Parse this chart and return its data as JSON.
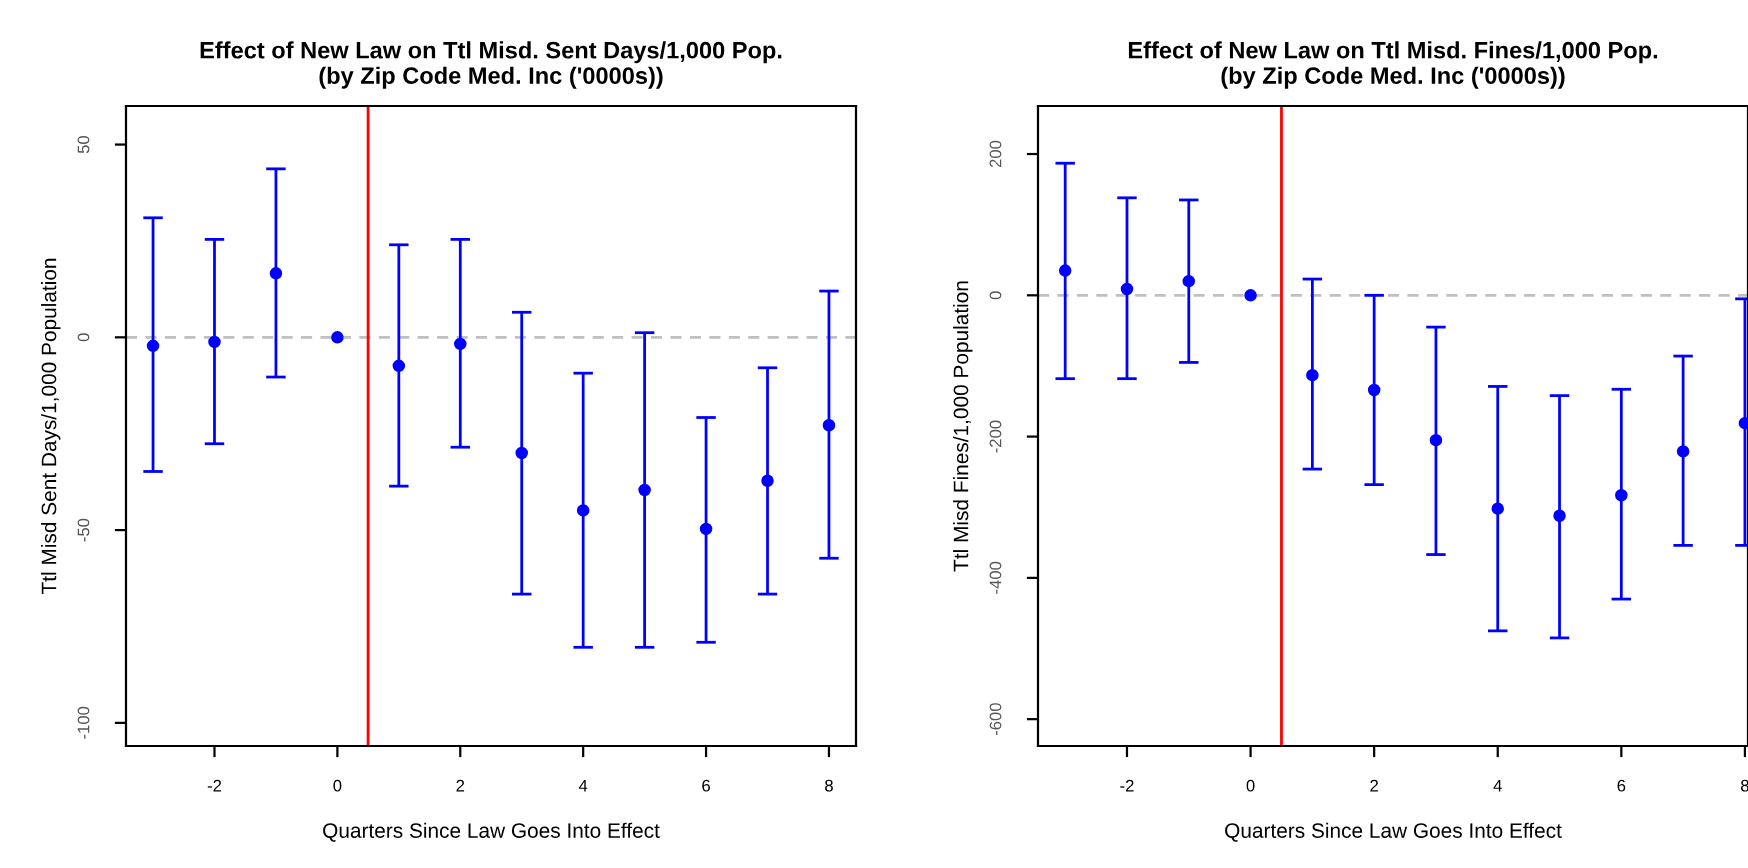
{
  "chart_data": [
    {
      "type": "scatter",
      "title": "Effect of New Law on Ttl Misd. Sent Days/1,000 Pop.\n(by Zip Code Med. Inc ('0000s))",
      "xlabel": "Quarters Since Law Goes Into Effect",
      "ylabel": "Ttl Misd Sent Days/1,000 Population",
      "x": [
        -3,
        -2,
        -1,
        0,
        1,
        2,
        3,
        4,
        5,
        6,
        7,
        8
      ],
      "series": [
        {
          "color": "#0000ff",
          "values": [
            -2.2,
            -1.2,
            16.6,
            0,
            -7.4,
            -1.7,
            -30,
            -44.9,
            -39.6,
            -49.7,
            -37.2,
            -22.8
          ],
          "errors": [
            [
              -34.8,
              31
            ],
            [
              -27.6,
              25.4
            ],
            [
              -10.3,
              43.7
            ],
            null,
            [
              -38.6,
              24
            ],
            [
              -28.5,
              25.4
            ],
            [
              -66.6,
              6.5
            ],
            [
              -80.4,
              -9.3
            ],
            [
              -80.4,
              1.2
            ],
            [
              -79.1,
              -20.8
            ],
            [
              -66.6,
              -7.9
            ],
            [
              -57.3,
              12
            ]
          ]
        }
      ],
      "xlim": [
        -3.44,
        8.44
      ],
      "ylim": [
        -106,
        60
      ],
      "xticks": [
        -2,
        0,
        2,
        4,
        6,
        8
      ],
      "yticks": [
        -100,
        -50,
        0,
        50
      ],
      "ref_lines": [
        {
          "axis": "y",
          "value": 0,
          "color": "#c0c0c0",
          "line_style": "dashed"
        },
        {
          "axis": "x",
          "value": 0.5,
          "color": "#ff0000",
          "line_style": "solid"
        }
      ],
      "marker": "circle",
      "grid": false,
      "legend": false
    },
    {
      "type": "scatter",
      "title": "Effect of New Law on Ttl Misd. Fines/1,000 Pop.\n(by Zip Code Med. Inc ('0000s))",
      "xlabel": "Quarters Since Law Goes Into Effect",
      "ylabel": "Ttl Misd Fines/1,000 Population",
      "x": [
        -3,
        -2,
        -1,
        0,
        1,
        2,
        3,
        4,
        5,
        6,
        7,
        8
      ],
      "series": [
        {
          "color": "#0000ff",
          "values": [
            35,
            9,
            20,
            0,
            -113,
            -134,
            -205,
            -302,
            -312,
            -283,
            -221,
            -181
          ],
          "errors": [
            [
              -118,
              187
            ],
            [
              -118,
              138
            ],
            [
              -95,
              135
            ],
            null,
            [
              -246,
              23
            ],
            [
              -268,
              0
            ],
            [
              -367,
              -45
            ],
            [
              -475,
              -129
            ],
            [
              -485,
              -142
            ],
            [
              -430,
              -133
            ],
            [
              -354,
              -86
            ],
            [
              -354,
              -5
            ]
          ]
        }
      ],
      "xlim": [
        -3.44,
        8.05
      ],
      "ylim": [
        -638,
        268
      ],
      "xticks": [
        -2,
        0,
        2,
        4,
        6,
        8
      ],
      "yticks": [
        -600,
        -400,
        -200,
        0,
        200
      ],
      "ref_lines": [
        {
          "axis": "y",
          "value": 0,
          "color": "#c0c0c0",
          "line_style": "dashed"
        },
        {
          "axis": "x",
          "value": 0.5,
          "color": "#ff0000",
          "line_style": "solid"
        }
      ],
      "marker": "circle",
      "grid": false,
      "legend": false
    }
  ]
}
